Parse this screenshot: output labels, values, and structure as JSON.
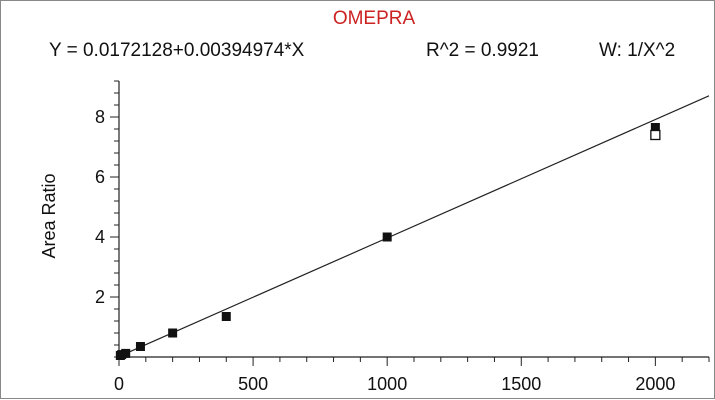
{
  "chart_data": {
    "type": "scatter",
    "title": "OMEPRA",
    "equation": "Y = 0.0172128+0.00394974*X",
    "r_squared": "R^2 = 0.9921",
    "weighting": "W: 1/X^2",
    "xlabel": "",
    "ylabel": "Area Ratio",
    "xlim": [
      0,
      2200
    ],
    "ylim": [
      0,
      9.2
    ],
    "x_ticks": [
      0,
      500,
      1000,
      1500,
      2000
    ],
    "y_ticks": [
      2,
      4,
      6,
      8
    ],
    "grid": false,
    "fit_line": {
      "intercept": 0.0172128,
      "slope": 0.00394974
    },
    "series": [
      {
        "marker": "filled-square",
        "points": [
          {
            "x": 5,
            "y": 0.05
          },
          {
            "x": 10,
            "y": 0.08
          },
          {
            "x": 25,
            "y": 0.12
          },
          {
            "x": 80,
            "y": 0.35
          },
          {
            "x": 200,
            "y": 0.8
          },
          {
            "x": 400,
            "y": 1.35
          },
          {
            "x": 1000,
            "y": 4.0
          },
          {
            "x": 2000,
            "y": 7.65
          }
        ]
      },
      {
        "marker": "open-square",
        "points": [
          {
            "x": 2000,
            "y": 7.4
          }
        ]
      }
    ]
  }
}
